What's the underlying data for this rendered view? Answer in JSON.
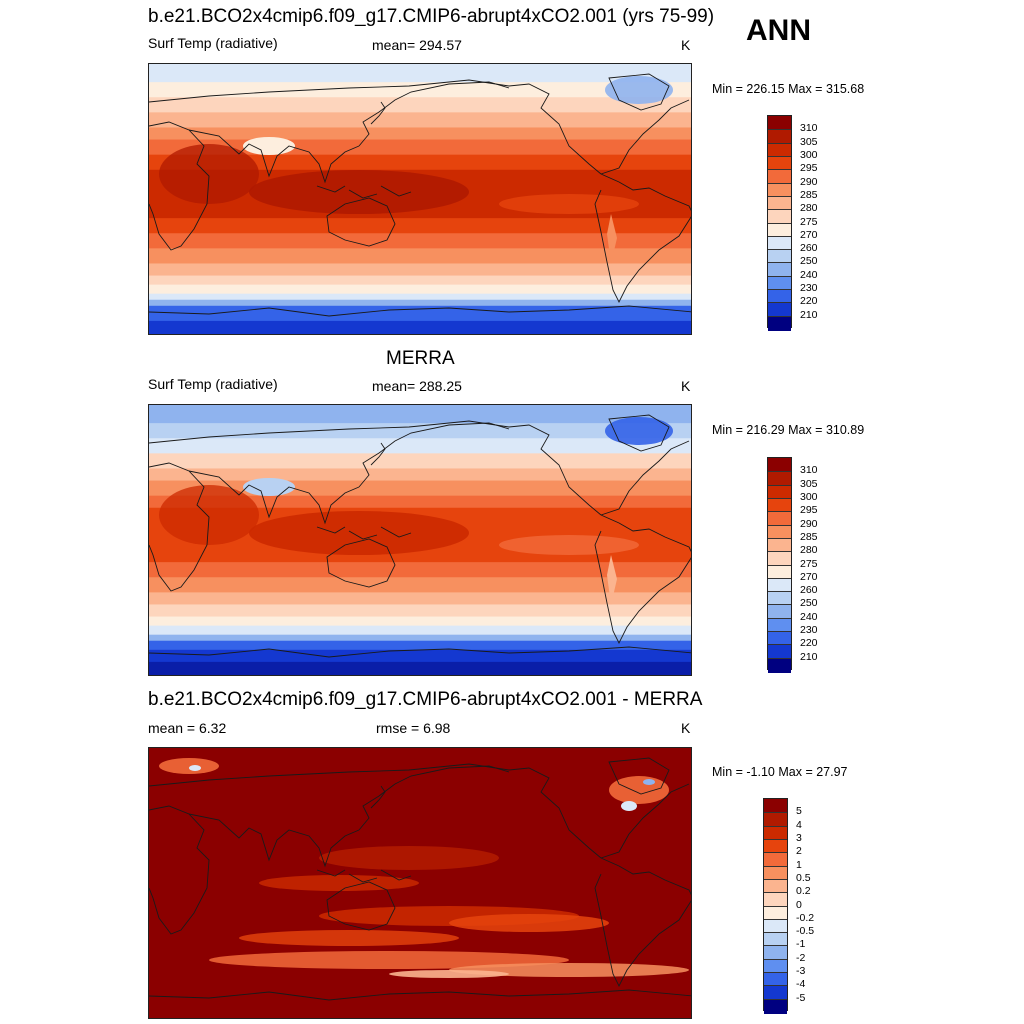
{
  "season": "ANN",
  "panels": [
    {
      "id": "model",
      "title": "b.e21.BCO2x4cmip6.f09_g17.CMIP6-abrupt4xCO2.001 (yrs 75-99)",
      "left_label": "Surf Temp (radiative)",
      "center_label": "mean= 294.57",
      "units": "K",
      "minmax": "Min = 226.15 Max = 315.68",
      "colorbar_labels": [
        "310",
        "305",
        "300",
        "295",
        "290",
        "285",
        "280",
        "275",
        "270",
        "260",
        "250",
        "240",
        "230",
        "220",
        "210"
      ]
    },
    {
      "id": "obs",
      "title": "MERRA",
      "left_label": "Surf Temp (radiative)",
      "center_label": "mean= 288.25",
      "units": "K",
      "minmax": "Min = 216.29 Max = 310.89",
      "colorbar_labels": [
        "310",
        "305",
        "300",
        "295",
        "290",
        "285",
        "280",
        "275",
        "270",
        "260",
        "250",
        "240",
        "230",
        "220",
        "210"
      ]
    },
    {
      "id": "diff",
      "title": "b.e21.BCO2x4cmip6.f09_g17.CMIP6-abrupt4xCO2.001 - MERRA",
      "left_label": "mean =   6.32",
      "center_label": "rmse =   6.98",
      "units": "K",
      "minmax": "Min =  -1.10 Max =  27.97",
      "colorbar_labels": [
        "5",
        "4",
        "3",
        "2",
        "1",
        "0.5",
        "0.2",
        "0",
        "-0.2",
        "-0.5",
        "-1",
        "-2",
        "-3",
        "-4",
        "-5"
      ]
    }
  ],
  "colors": {
    "palette_warm_to_cold": [
      "#8b0000",
      "#b01a00",
      "#cc2a00",
      "#e6440d",
      "#f26a3a",
      "#f7905f",
      "#fbb48f",
      "#fdd5bd",
      "#fdeede",
      "#dbe8f8",
      "#b8d1f2",
      "#8fb3ee",
      "#5f8ff0",
      "#3463e8",
      "#1438d0",
      "#0a1ea8",
      "#000080"
    ],
    "coast": "#1a1a1a",
    "frame": "#222222"
  }
}
